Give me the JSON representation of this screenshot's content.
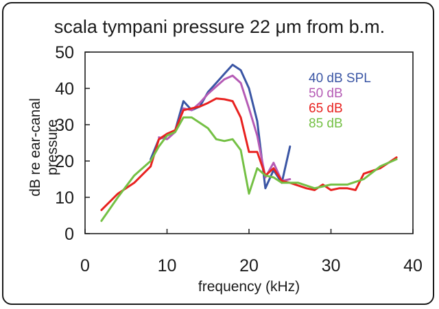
{
  "chart_data": {
    "type": "line",
    "title": "scala tympani pressure 22 μm from b.m.",
    "xlabel": "frequency (kHz)",
    "ylabel_line1": "dB re ear-canal",
    "ylabel_line2": "pressure",
    "xlim": [
      0,
      40
    ],
    "ylim": [
      0,
      50
    ],
    "xticks": [
      0,
      10,
      20,
      30,
      40
    ],
    "yticks": [
      0,
      10,
      20,
      30,
      40,
      50
    ],
    "grid": false,
    "legend_position": "top-right",
    "series": [
      {
        "name": "40 dB SPL",
        "color": "#3a55a4",
        "points": [
          [
            8,
            20.5
          ],
          [
            9,
            26
          ],
          [
            10,
            27
          ],
          [
            11,
            28.5
          ],
          [
            12,
            36.5
          ],
          [
            13,
            34
          ],
          [
            14,
            35
          ],
          [
            15,
            39
          ],
          [
            16,
            41.5
          ],
          [
            17,
            44
          ],
          [
            18,
            46.5
          ],
          [
            19,
            45
          ],
          [
            20,
            40
          ],
          [
            21,
            31
          ],
          [
            22,
            12.5
          ],
          [
            23,
            17.5
          ],
          [
            24,
            14
          ],
          [
            25,
            24
          ]
        ]
      },
      {
        "name": "50 dB",
        "color": "#b55bb5",
        "points": [
          [
            9,
            26.5
          ],
          [
            10,
            26
          ],
          [
            11,
            28
          ],
          [
            12,
            34.5
          ],
          [
            13,
            34
          ],
          [
            14,
            36
          ],
          [
            15,
            38.5
          ],
          [
            16,
            40.5
          ],
          [
            17,
            42.5
          ],
          [
            18,
            43.5
          ],
          [
            19,
            41.5
          ],
          [
            20,
            34.5
          ],
          [
            21,
            27
          ],
          [
            22,
            15.5
          ],
          [
            23,
            19.5
          ],
          [
            24,
            14.5
          ],
          [
            25,
            15
          ]
        ]
      },
      {
        "name": "65 dB",
        "color": "#e8211f",
        "points": [
          [
            2,
            6.5
          ],
          [
            4,
            11
          ],
          [
            6,
            14
          ],
          [
            8,
            18.5
          ],
          [
            9,
            26
          ],
          [
            10,
            27.5
          ],
          [
            11,
            28.5
          ],
          [
            12,
            34
          ],
          [
            13,
            34.5
          ],
          [
            14,
            35
          ],
          [
            15,
            36
          ],
          [
            16,
            37.2
          ],
          [
            17,
            37
          ],
          [
            18,
            36.5
          ],
          [
            19,
            32
          ],
          [
            20,
            22.5
          ],
          [
            21,
            22.5
          ],
          [
            22,
            16
          ],
          [
            23,
            18
          ],
          [
            24,
            14.5
          ],
          [
            25,
            14
          ],
          [
            27,
            12.5
          ],
          [
            28,
            12
          ],
          [
            29,
            13.5
          ],
          [
            30,
            12
          ],
          [
            31,
            12.5
          ],
          [
            32,
            12.5
          ],
          [
            33,
            12
          ],
          [
            34,
            16.5
          ],
          [
            36,
            18
          ],
          [
            38,
            21
          ]
        ]
      },
      {
        "name": "85 dB",
        "color": "#74c044",
        "points": [
          [
            2,
            3.5
          ],
          [
            4,
            10
          ],
          [
            6,
            16
          ],
          [
            8,
            20
          ],
          [
            9,
            24
          ],
          [
            10,
            27
          ],
          [
            11,
            28
          ],
          [
            12,
            32
          ],
          [
            13,
            32
          ],
          [
            14,
            30.5
          ],
          [
            15,
            29
          ],
          [
            16,
            26
          ],
          [
            17,
            25.5
          ],
          [
            18,
            26
          ],
          [
            19,
            23
          ],
          [
            20,
            11
          ],
          [
            21,
            18
          ],
          [
            22,
            16
          ],
          [
            23,
            15.5
          ],
          [
            24,
            14
          ],
          [
            26,
            14
          ],
          [
            28,
            12.5
          ],
          [
            29,
            13
          ],
          [
            30,
            13.5
          ],
          [
            32,
            13.5
          ],
          [
            34,
            15
          ],
          [
            36,
            18.5
          ],
          [
            38,
            20.5
          ]
        ]
      }
    ]
  }
}
